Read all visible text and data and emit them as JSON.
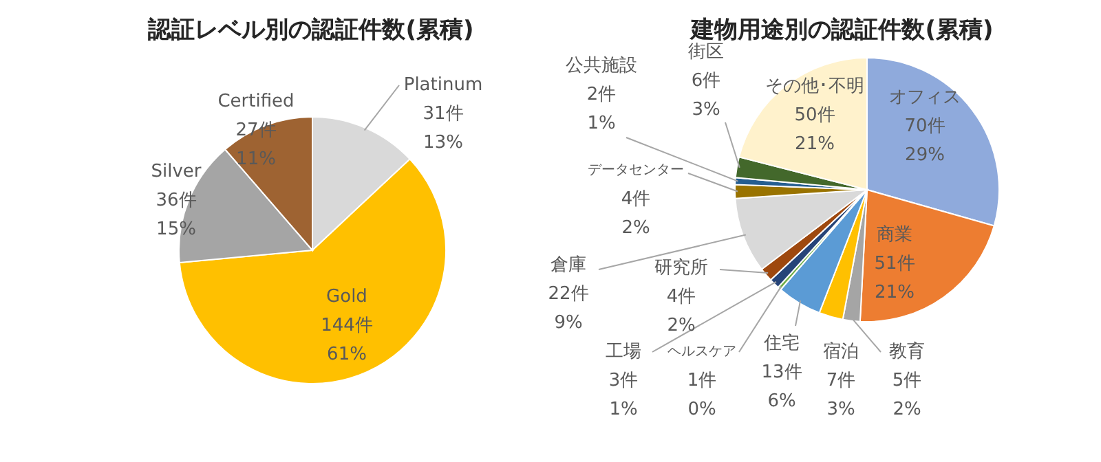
{
  "chart_data": [
    {
      "type": "pie",
      "title": "認証レベル別の認証件数(累積)",
      "categories": [
        "Platinum",
        "Gold",
        "Silver",
        "Certified"
      ],
      "values": [
        31,
        144,
        36,
        27
      ],
      "colors": [
        "#d9d9d9",
        "#ffc000",
        "#a5a5a5",
        "#9e6332"
      ],
      "value_labels": [
        "31件\n13%",
        "144件\n61%",
        "36件\n15%",
        "27件\n11%"
      ]
    },
    {
      "type": "pie",
      "title": "建物用途別の認証件数(累積)",
      "categories": [
        "オフィス",
        "商業",
        "教育",
        "宿泊",
        "住宅",
        "ヘルスケア",
        "工場",
        "研究所",
        "倉庫",
        "データセンター",
        "公共施設",
        "街区",
        "その他･不明"
      ],
      "values": [
        70,
        51,
        5,
        7,
        13,
        1,
        3,
        4,
        22,
        4,
        2,
        6,
        50
      ],
      "colors": [
        "#8faadc",
        "#ed7d31",
        "#a5a5a5",
        "#ffc000",
        "#5b9bd5",
        "#70ad47",
        "#264478",
        "#9e480e",
        "#d9d9d9",
        "#997300",
        "#255e91",
        "#43682b",
        "#fff2cc"
      ],
      "value_labels": [
        "70件\n29%",
        "51件\n21%",
        "5件\n2%",
        "7件\n3%",
        "13件\n6%",
        "1件\n0%",
        "3件\n1%",
        "4件\n2%",
        "22件\n9%",
        "4件\n2%",
        "2件\n1%",
        "6件\n3%",
        "50件\n21%"
      ]
    }
  ]
}
